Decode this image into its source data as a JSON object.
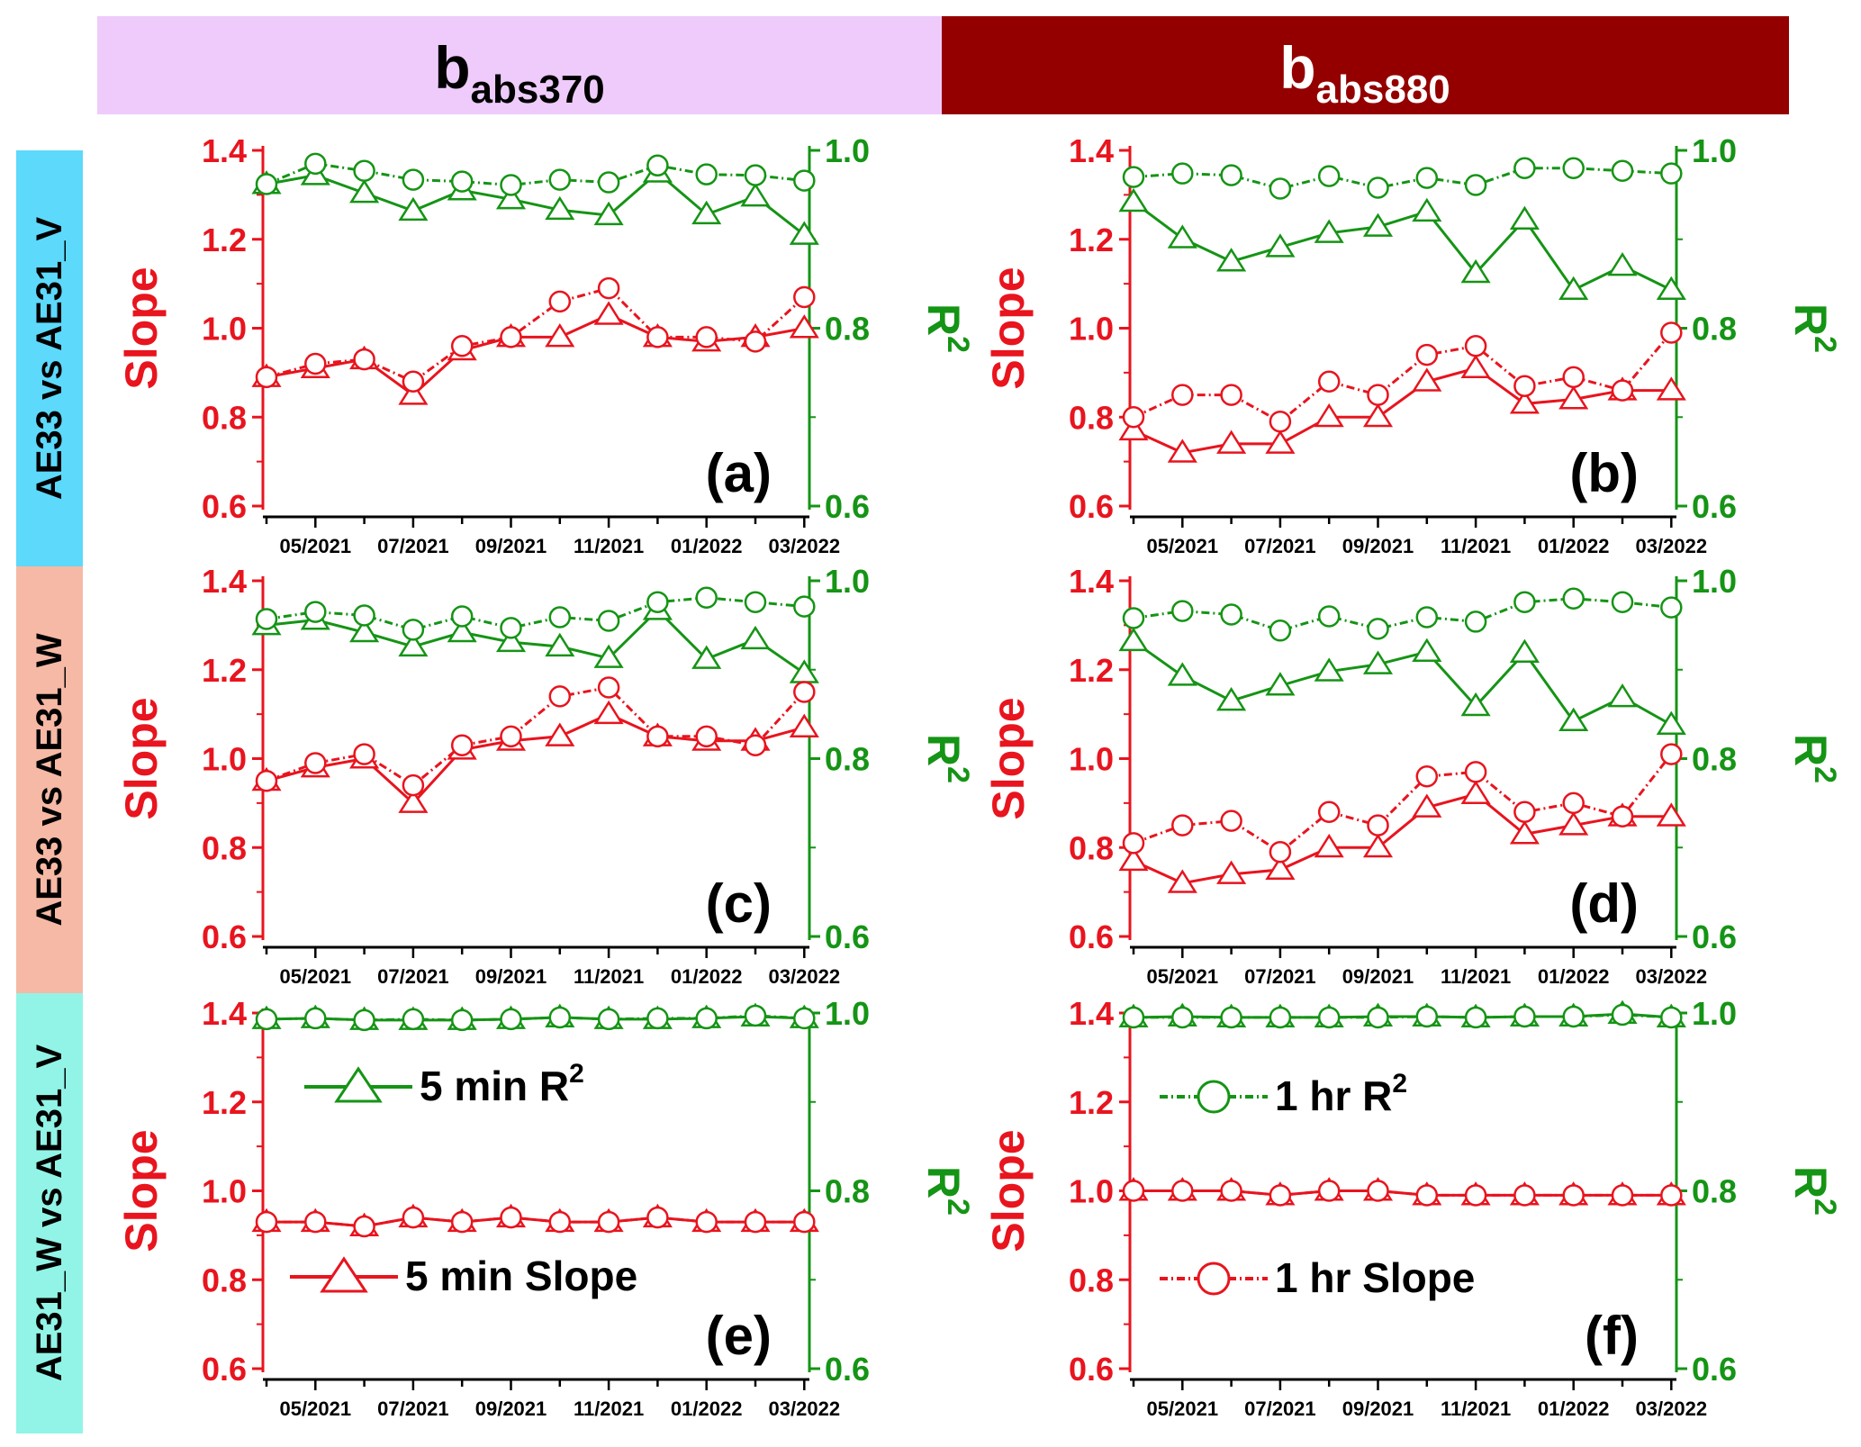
{
  "header": {
    "left": {
      "main": "b",
      "sub": "abs370",
      "color": "#eecbfb"
    },
    "right": {
      "main": "b",
      "sub": "abs880",
      "color": "#940000"
    }
  },
  "row_labels": [
    {
      "text": "AE33 vs AE31_V",
      "color": "#5dd9fb"
    },
    {
      "text": "AE33 vs AE31_W",
      "color": "#f6b9a5"
    },
    {
      "text": "AE31_W vs AE31_V",
      "color": "#92f4e6"
    }
  ],
  "axes": {
    "left_title": "Slope",
    "right_title": "R",
    "right_title_sup": "2",
    "left_ticks": [
      "1.4",
      "1.2",
      "1.0",
      "0.8",
      "0.6"
    ],
    "right_ticks": [
      "1.0",
      "0.8",
      "0.6"
    ],
    "x_ticks": [
      "05/2021",
      "07/2021",
      "09/2021",
      "11/2021",
      "01/2022",
      "03/2022"
    ]
  },
  "legend": {
    "r2_5min": "5 min R",
    "slope_5min": "5 min Slope",
    "r2_1hr": "1 hr R",
    "slope_1hr": "1 hr Slope",
    "sup": "2"
  },
  "colors": {
    "slope": "#e8141e",
    "r2": "#159415"
  },
  "chart_data": [
    {
      "panel": "(a)",
      "type": "line",
      "x": [
        "04/2021",
        "05/2021",
        "06/2021",
        "07/2021",
        "08/2021",
        "09/2021",
        "10/2021",
        "11/2021",
        "12/2021",
        "01/2022",
        "02/2022",
        "03/2022"
      ],
      "ylim_left": [
        0.6,
        1.4
      ],
      "ylim_right": [
        0.6,
        1.0
      ],
      "series": [
        {
          "name": "5 min R2",
          "axis": "right",
          "values": [
            0.962,
            0.972,
            0.952,
            0.932,
            0.955,
            0.945,
            0.933,
            0.927,
            0.975,
            0.928,
            0.948,
            0.905
          ]
        },
        {
          "name": "1 hr R2",
          "axis": "right",
          "values": [
            0.962,
            0.985,
            0.977,
            0.967,
            0.965,
            0.961,
            0.967,
            0.964,
            0.983,
            0.973,
            0.972,
            0.966
          ]
        },
        {
          "name": "5 min Slope",
          "axis": "left",
          "values": [
            0.89,
            0.91,
            0.93,
            0.85,
            0.95,
            0.98,
            0.98,
            1.03,
            0.98,
            0.97,
            0.98,
            1.0
          ]
        },
        {
          "name": "1 hr Slope",
          "axis": "left",
          "values": [
            0.89,
            0.92,
            0.93,
            0.88,
            0.96,
            0.98,
            1.06,
            1.09,
            0.98,
            0.98,
            0.97,
            1.07
          ]
        }
      ]
    },
    {
      "panel": "(b)",
      "type": "line",
      "x": [
        "04/2021",
        "05/2021",
        "06/2021",
        "07/2021",
        "08/2021",
        "09/2021",
        "10/2021",
        "11/2021",
        "12/2021",
        "01/2022",
        "02/2022",
        "03/2022"
      ],
      "ylim_left": [
        0.6,
        1.4
      ],
      "ylim_right": [
        0.6,
        1.0
      ],
      "series": [
        {
          "name": "5 min R2",
          "axis": "right",
          "values": [
            0.942,
            0.901,
            0.875,
            0.891,
            0.907,
            0.914,
            0.931,
            0.862,
            0.922,
            0.843,
            0.87,
            0.843
          ]
        },
        {
          "name": "1 hr R2",
          "axis": "right",
          "values": [
            0.97,
            0.974,
            0.972,
            0.957,
            0.971,
            0.958,
            0.969,
            0.961,
            0.98,
            0.98,
            0.977,
            0.974
          ]
        },
        {
          "name": "5 min Slope",
          "axis": "left",
          "values": [
            0.77,
            0.72,
            0.74,
            0.74,
            0.8,
            0.8,
            0.88,
            0.91,
            0.83,
            0.84,
            0.86,
            0.86
          ]
        },
        {
          "name": "1 hr Slope",
          "axis": "left",
          "values": [
            0.8,
            0.85,
            0.85,
            0.79,
            0.88,
            0.85,
            0.94,
            0.96,
            0.87,
            0.89,
            0.86,
            0.99
          ]
        }
      ]
    },
    {
      "panel": "(c)",
      "type": "line",
      "x": [
        "04/2021",
        "05/2021",
        "06/2021",
        "07/2021",
        "08/2021",
        "09/2021",
        "10/2021",
        "11/2021",
        "12/2021",
        "01/2022",
        "02/2022",
        "03/2022"
      ],
      "ylim_left": [
        0.6,
        1.4
      ],
      "ylim_right": [
        0.6,
        1.0
      ],
      "series": [
        {
          "name": "5 min R2",
          "axis": "right",
          "values": [
            0.95,
            0.956,
            0.942,
            0.926,
            0.942,
            0.931,
            0.926,
            0.913,
            0.967,
            0.912,
            0.934,
            0.896
          ]
        },
        {
          "name": "1 hr R2",
          "axis": "right",
          "values": [
            0.957,
            0.965,
            0.961,
            0.945,
            0.96,
            0.947,
            0.959,
            0.955,
            0.976,
            0.981,
            0.976,
            0.971
          ]
        },
        {
          "name": "5 min Slope",
          "axis": "left",
          "values": [
            0.95,
            0.98,
            1.0,
            0.9,
            1.02,
            1.04,
            1.05,
            1.1,
            1.05,
            1.04,
            1.04,
            1.07
          ]
        },
        {
          "name": "1 hr Slope",
          "axis": "left",
          "values": [
            0.95,
            0.99,
            1.01,
            0.94,
            1.03,
            1.05,
            1.14,
            1.16,
            1.05,
            1.05,
            1.03,
            1.15
          ]
        }
      ]
    },
    {
      "panel": "(d)",
      "type": "line",
      "x": [
        "04/2021",
        "05/2021",
        "06/2021",
        "07/2021",
        "08/2021",
        "09/2021",
        "10/2021",
        "11/2021",
        "12/2021",
        "01/2022",
        "02/2022",
        "03/2022"
      ],
      "ylim_left": [
        0.6,
        1.4
      ],
      "ylim_right": [
        0.6,
        1.0
      ],
      "series": [
        {
          "name": "5 min R2",
          "axis": "right",
          "values": [
            0.932,
            0.893,
            0.865,
            0.882,
            0.898,
            0.906,
            0.92,
            0.859,
            0.919,
            0.842,
            0.869,
            0.838
          ]
        },
        {
          "name": "1 hr R2",
          "axis": "right",
          "values": [
            0.958,
            0.966,
            0.962,
            0.944,
            0.96,
            0.946,
            0.959,
            0.954,
            0.976,
            0.98,
            0.976,
            0.97
          ]
        },
        {
          "name": "5 min Slope",
          "axis": "left",
          "values": [
            0.77,
            0.72,
            0.74,
            0.75,
            0.8,
            0.8,
            0.89,
            0.92,
            0.83,
            0.85,
            0.87,
            0.87
          ]
        },
        {
          "name": "1 hr Slope",
          "axis": "left",
          "values": [
            0.81,
            0.85,
            0.86,
            0.79,
            0.88,
            0.85,
            0.96,
            0.97,
            0.88,
            0.9,
            0.87,
            1.01
          ]
        }
      ]
    },
    {
      "panel": "(e)",
      "type": "line",
      "x": [
        "04/2021",
        "05/2021",
        "06/2021",
        "07/2021",
        "08/2021",
        "09/2021",
        "10/2021",
        "11/2021",
        "12/2021",
        "01/2022",
        "02/2022",
        "03/2022"
      ],
      "ylim_left": [
        0.6,
        1.4
      ],
      "ylim_right": [
        0.6,
        1.0
      ],
      "series": [
        {
          "name": "5 min R2",
          "axis": "right",
          "values": [
            0.993,
            0.994,
            0.992,
            0.992,
            0.992,
            0.993,
            0.995,
            0.993,
            0.993,
            0.994,
            0.996,
            0.994
          ]
        },
        {
          "name": "1 hr R2",
          "axis": "right",
          "values": [
            0.993,
            0.994,
            0.992,
            0.993,
            0.992,
            0.993,
            0.995,
            0.993,
            0.994,
            0.994,
            0.997,
            0.994
          ]
        },
        {
          "name": "5 min Slope",
          "axis": "left",
          "values": [
            0.93,
            0.93,
            0.92,
            0.94,
            0.93,
            0.94,
            0.93,
            0.93,
            0.94,
            0.93,
            0.93,
            0.93
          ]
        },
        {
          "name": "1 hr Slope",
          "axis": "left",
          "values": [
            0.93,
            0.93,
            0.92,
            0.94,
            0.93,
            0.94,
            0.93,
            0.93,
            0.94,
            0.93,
            0.93,
            0.93
          ]
        }
      ]
    },
    {
      "panel": "(f)",
      "type": "line",
      "x": [
        "04/2021",
        "05/2021",
        "06/2021",
        "07/2021",
        "08/2021",
        "09/2021",
        "10/2021",
        "11/2021",
        "12/2021",
        "01/2022",
        "02/2022",
        "03/2022"
      ],
      "ylim_left": [
        0.6,
        1.4
      ],
      "ylim_right": [
        0.6,
        1.0
      ],
      "series": [
        {
          "name": "5 min R2",
          "axis": "right",
          "values": [
            0.995,
            0.996,
            0.995,
            0.995,
            0.995,
            0.996,
            0.996,
            0.995,
            0.996,
            0.996,
            0.999,
            0.995
          ]
        },
        {
          "name": "1 hr R2",
          "axis": "right",
          "values": [
            0.995,
            0.995,
            0.995,
            0.995,
            0.995,
            0.995,
            0.996,
            0.995,
            0.996,
            0.996,
            0.998,
            0.995
          ]
        },
        {
          "name": "5 min Slope",
          "axis": "left",
          "values": [
            1.0,
            1.0,
            1.0,
            0.99,
            1.0,
            1.0,
            0.99,
            0.99,
            0.99,
            0.99,
            0.99,
            0.99
          ]
        },
        {
          "name": "1 hr Slope",
          "axis": "left",
          "values": [
            1.0,
            1.0,
            1.0,
            0.99,
            1.0,
            1.0,
            0.99,
            0.99,
            0.99,
            0.99,
            0.99,
            0.99
          ]
        }
      ]
    }
  ]
}
